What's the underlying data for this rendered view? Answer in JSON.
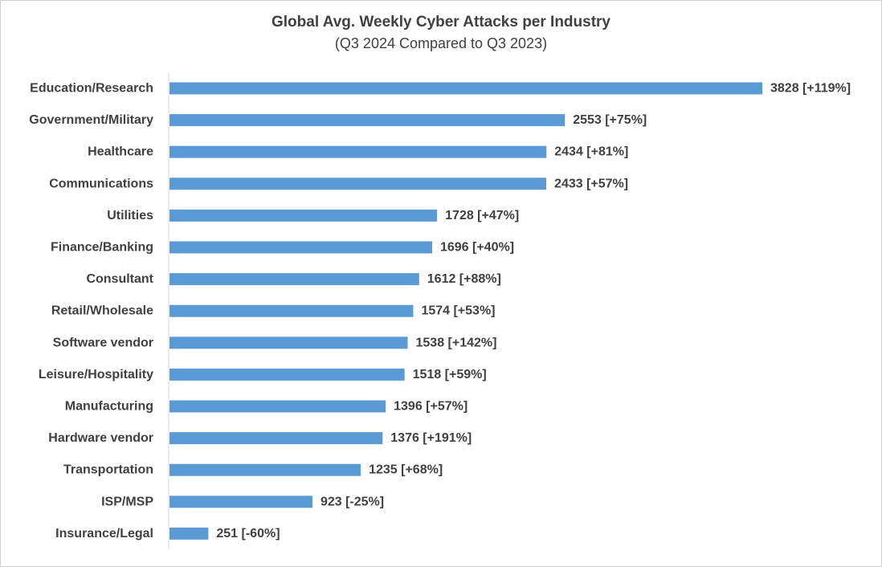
{
  "chart_data": {
    "type": "bar",
    "orientation": "horizontal",
    "title": "Global Avg. Weekly Cyber Attacks per Industry",
    "subtitle": "(Q3 2024 Compared to Q3 2023)",
    "categories": [
      "Education/Research",
      "Government/Military",
      "Healthcare",
      "Communications",
      "Utilities",
      "Finance/Banking",
      "Consultant",
      "Retail/Wholesale",
      "Software vendor",
      "Leisure/Hospitality",
      "Manufacturing",
      "Hardware vendor",
      "Transportation",
      "ISP/MSP",
      "Insurance/Legal"
    ],
    "values": [
      3828,
      2553,
      2434,
      2433,
      1728,
      1696,
      1612,
      1574,
      1538,
      1518,
      1396,
      1376,
      1235,
      923,
      251
    ],
    "data_labels": [
      "3828 [+119%]",
      "2553 [+75%]",
      "2434 [+81%]",
      "2433 [+57%]",
      "1728 [+47%]",
      "1696 [+40%]",
      "1612 [+88%]",
      "1574 [+53%]",
      "1538 [+142%]",
      "1518 [+59%]",
      "1396 [+57%]",
      "1376 [+191%]",
      "1235 [+68%]",
      "923 [-25%]",
      "251 [-60%]"
    ],
    "change_percent": [
      119,
      75,
      81,
      57,
      47,
      40,
      88,
      53,
      142,
      59,
      57,
      191,
      68,
      -25,
      -60
    ],
    "bar_color": "#5b9bd5",
    "xlim": [
      0,
      3828
    ],
    "grid": false,
    "legend": "none"
  }
}
